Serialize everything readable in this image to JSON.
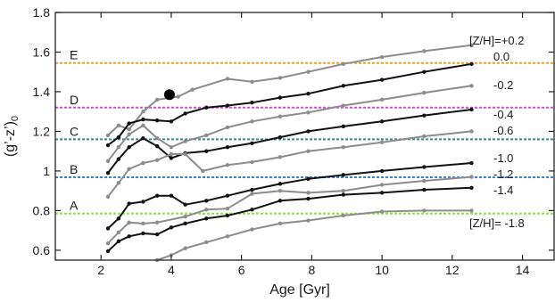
{
  "chart_data": {
    "type": "line",
    "xlabel": "Age [Gyr]",
    "ylabel_main": "(g’-z’)",
    "ylabel_sub": "0",
    "xlim": [
      0.7,
      14.9
    ],
    "ylim": [
      0.55,
      1.8
    ],
    "xticks": [
      2,
      4,
      6,
      8,
      10,
      12,
      14
    ],
    "yticks": [
      0.6,
      0.8,
      1.0,
      1.2,
      1.4,
      1.6,
      1.8
    ],
    "ytick_labels": [
      "0.6",
      "0.8",
      "1",
      "1.2",
      "1.4",
      "1.6",
      "1.8"
    ],
    "grid": false,
    "bands": [
      {
        "label": "E",
        "y": 1.545,
        "color": "#f0a020"
      },
      {
        "label": "D",
        "y": 1.32,
        "color": "#d050d0"
      },
      {
        "label": "C",
        "y": 1.16,
        "color": "#3a8a8a"
      },
      {
        "label": "B",
        "y": 0.968,
        "color": "#3b7de0"
      },
      {
        "label": "A",
        "y": 0.785,
        "color": "#8ee03a"
      }
    ],
    "marker": {
      "x": 3.95,
      "y": 1.385
    },
    "series": [
      {
        "label": "[Z/H]=+0.2",
        "color": "#8c8c8c",
        "values": [
          [
            2.2,
            1.18
          ],
          [
            2.5,
            1.23
          ],
          [
            2.8,
            1.21
          ],
          [
            3.2,
            1.3
          ],
          [
            3.6,
            1.36
          ],
          [
            4.2,
            1.375
          ],
          [
            4.6,
            1.41
          ],
          [
            5.6,
            1.465
          ],
          [
            6.3,
            1.45
          ],
          [
            7.1,
            1.47
          ],
          [
            7.9,
            1.5
          ],
          [
            8.9,
            1.54
          ],
          [
            10,
            1.575
          ],
          [
            11.2,
            1.605
          ],
          [
            12.55,
            1.635
          ]
        ]
      },
      {
        "label": "0.0",
        "color": "#111111",
        "values": [
          [
            2.2,
            1.13
          ],
          [
            2.5,
            1.17
          ],
          [
            2.8,
            1.24
          ],
          [
            3.2,
            1.26
          ],
          [
            3.6,
            1.255
          ],
          [
            4,
            1.25
          ],
          [
            4.4,
            1.29
          ],
          [
            5,
            1.32
          ],
          [
            5.6,
            1.33
          ],
          [
            6.3,
            1.345
          ],
          [
            7.1,
            1.37
          ],
          [
            7.9,
            1.39
          ],
          [
            8.9,
            1.43
          ],
          [
            10,
            1.46
          ],
          [
            11.2,
            1.5
          ],
          [
            12.55,
            1.54
          ]
        ]
      },
      {
        "label": "-0.2",
        "color": "#8c8c8c",
        "values": [
          [
            2.2,
            1.05
          ],
          [
            2.5,
            1.12
          ],
          [
            2.8,
            1.185
          ],
          [
            3.2,
            1.23
          ],
          [
            3.6,
            1.165
          ],
          [
            4,
            1.12
          ],
          [
            4.4,
            1.15
          ],
          [
            5,
            1.18
          ],
          [
            5.6,
            1.22
          ],
          [
            6.3,
            1.25
          ],
          [
            7.1,
            1.275
          ],
          [
            7.9,
            1.295
          ],
          [
            8.9,
            1.33
          ],
          [
            10,
            1.36
          ],
          [
            11.2,
            1.395
          ],
          [
            12.55,
            1.43
          ]
        ]
      },
      {
        "label": "-0.4",
        "color": "#111111",
        "values": [
          [
            2.2,
            0.99
          ],
          [
            2.5,
            1.06
          ],
          [
            2.8,
            1.12
          ],
          [
            3.2,
            1.165
          ],
          [
            3.6,
            1.125
          ],
          [
            4,
            1.065
          ],
          [
            4.4,
            1.09
          ],
          [
            5,
            1.1
          ],
          [
            5.6,
            1.12
          ],
          [
            6.3,
            1.14
          ],
          [
            7.1,
            1.17
          ],
          [
            7.9,
            1.2
          ],
          [
            8.9,
            1.225
          ],
          [
            10,
            1.25
          ],
          [
            11.2,
            1.28
          ],
          [
            12.55,
            1.31
          ]
        ]
      },
      {
        "label": "-0.6",
        "color": "#8c8c8c",
        "values": [
          [
            2.2,
            0.87
          ],
          [
            2.5,
            0.94
          ],
          [
            2.8,
            1.01
          ],
          [
            3.2,
            1.04
          ],
          [
            3.6,
            1.055
          ],
          [
            4,
            1.085
          ],
          [
            4.4,
            1.085
          ],
          [
            4.9,
            1.0
          ],
          [
            5.6,
            1.03
          ],
          [
            6.3,
            1.045
          ],
          [
            7.1,
            1.07
          ],
          [
            7.9,
            1.1
          ],
          [
            8.9,
            1.12
          ],
          [
            10,
            1.145
          ],
          [
            11.2,
            1.175
          ],
          [
            12.55,
            1.2
          ]
        ]
      },
      {
        "label": "-1.0",
        "color": "#111111",
        "values": [
          [
            2.2,
            0.71
          ],
          [
            2.5,
            0.76
          ],
          [
            2.8,
            0.835
          ],
          [
            3.2,
            0.845
          ],
          [
            3.6,
            0.875
          ],
          [
            4,
            0.875
          ],
          [
            4.4,
            0.83
          ],
          [
            5,
            0.85
          ],
          [
            5.6,
            0.875
          ],
          [
            6.3,
            0.905
          ],
          [
            7.1,
            0.935
          ],
          [
            7.9,
            0.96
          ],
          [
            8.9,
            0.98
          ],
          [
            10,
            1.0
          ],
          [
            11.2,
            1.02
          ],
          [
            12.55,
            1.04
          ]
        ]
      },
      {
        "label": "-1.2",
        "color": "#8c8c8c",
        "values": [
          [
            2.2,
            0.635
          ],
          [
            2.5,
            0.69
          ],
          [
            2.8,
            0.74
          ],
          [
            3.2,
            0.735
          ],
          [
            3.6,
            0.74
          ],
          [
            4.4,
            0.77
          ],
          [
            5,
            0.805
          ],
          [
            5.6,
            0.81
          ],
          [
            6.3,
            0.885
          ],
          [
            7.1,
            0.9
          ],
          [
            7.9,
            0.89
          ],
          [
            8.9,
            0.9
          ],
          [
            10,
            0.93
          ],
          [
            11.2,
            0.95
          ],
          [
            12.55,
            0.97
          ]
        ]
      },
      {
        "label": "-1.4",
        "color": "#111111",
        "values": [
          [
            2.2,
            0.595
          ],
          [
            2.5,
            0.645
          ],
          [
            2.8,
            0.67
          ],
          [
            3.2,
            0.685
          ],
          [
            3.6,
            0.68
          ],
          [
            4,
            0.715
          ],
          [
            4.4,
            0.735
          ],
          [
            5,
            0.76
          ],
          [
            5.6,
            0.775
          ],
          [
            6.3,
            0.805
          ],
          [
            7.1,
            0.85
          ],
          [
            7.9,
            0.86
          ],
          [
            8.9,
            0.88
          ],
          [
            10,
            0.89
          ],
          [
            11.2,
            0.905
          ],
          [
            12.55,
            0.915
          ]
        ]
      },
      {
        "label": "[Z/H]= -1.8",
        "color": "#8c8c8c",
        "values": [
          [
            3.6,
            0.55
          ],
          [
            4,
            0.575
          ],
          [
            4.4,
            0.61
          ],
          [
            5,
            0.64
          ],
          [
            5.6,
            0.67
          ],
          [
            6.3,
            0.705
          ],
          [
            7.1,
            0.735
          ],
          [
            7.9,
            0.75
          ],
          [
            8.9,
            0.775
          ],
          [
            10,
            0.795
          ],
          [
            11.2,
            0.8
          ],
          [
            12.55,
            0.8
          ]
        ]
      }
    ]
  }
}
